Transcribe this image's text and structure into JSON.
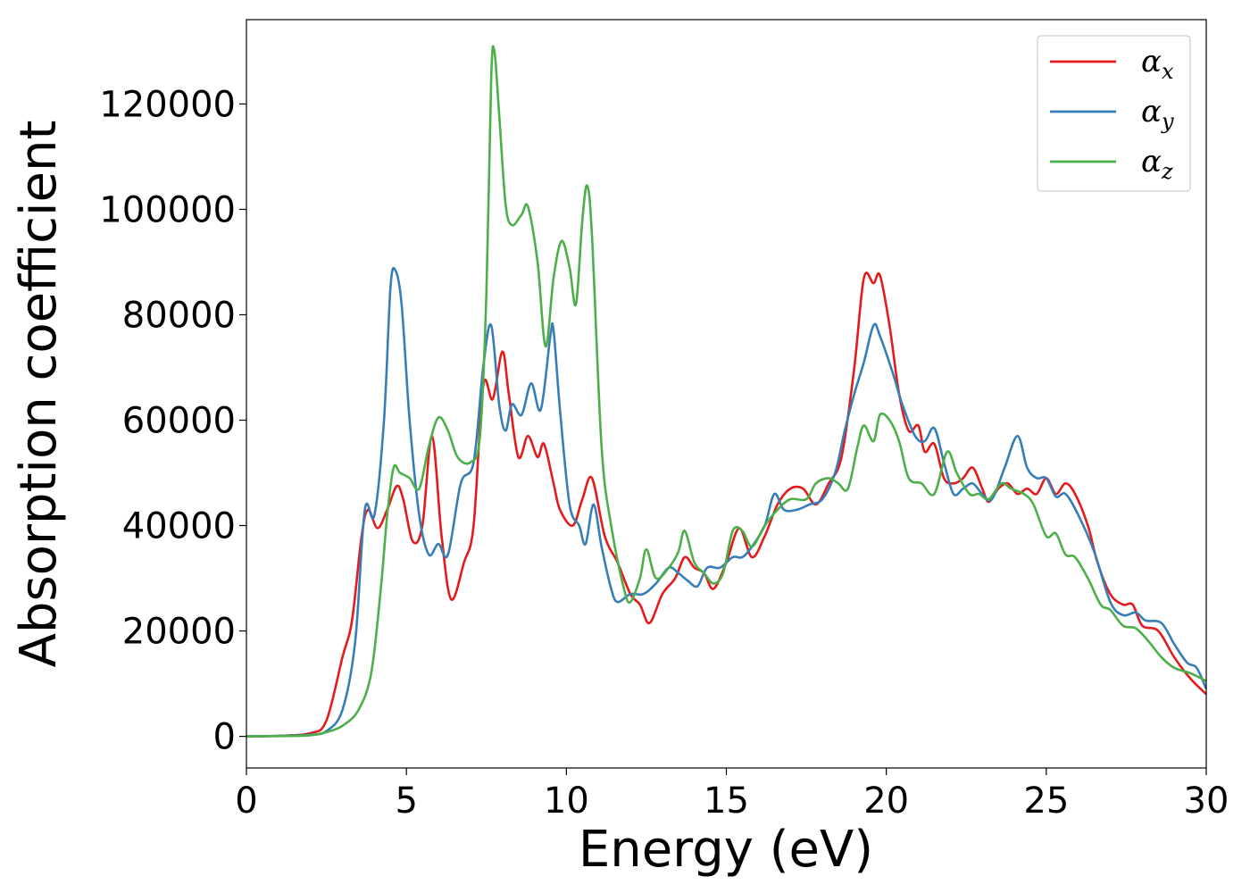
{
  "chart_data": {
    "type": "line",
    "xlabel": "Energy (eV)",
    "ylabel": "Absorption coefficient",
    "xlim": [
      0,
      30
    ],
    "ylim": [
      -6000,
      136000
    ],
    "x_ticks": [
      "0",
      "5",
      "10",
      "15",
      "20",
      "25",
      "30"
    ],
    "y_ticks": [
      "0",
      "20000",
      "40000",
      "60000",
      "80000",
      "100000",
      "120000"
    ],
    "grid": false,
    "legend_position": "top-right",
    "series": [
      {
        "name": "αx",
        "legend_base": "α",
        "legend_sub": "x",
        "color": "#e41a1c",
        "points": [
          [
            0,
            0
          ],
          [
            1,
            100
          ],
          [
            2,
            600
          ],
          [
            2.5,
            3000
          ],
          [
            3,
            15000
          ],
          [
            3.3,
            22000
          ],
          [
            3.6,
            38000
          ],
          [
            3.8,
            43000
          ],
          [
            4.1,
            39500
          ],
          [
            4.4,
            43000
          ],
          [
            4.7,
            47500
          ],
          [
            4.9,
            45000
          ],
          [
            5.2,
            37000
          ],
          [
            5.5,
            40000
          ],
          [
            5.8,
            57000
          ],
          [
            6.1,
            38000
          ],
          [
            6.4,
            26000
          ],
          [
            6.8,
            33000
          ],
          [
            7.1,
            40000
          ],
          [
            7.4,
            66500
          ],
          [
            7.7,
            64000
          ],
          [
            8,
            73000
          ],
          [
            8.2,
            65000
          ],
          [
            8.5,
            53000
          ],
          [
            8.8,
            57000
          ],
          [
            9.1,
            53000
          ],
          [
            9.3,
            55500
          ],
          [
            9.6,
            48000
          ],
          [
            9.8,
            43000
          ],
          [
            10.2,
            40000
          ],
          [
            10.5,
            45000
          ],
          [
            10.8,
            49000
          ],
          [
            11.2,
            38000
          ],
          [
            11.6,
            33000
          ],
          [
            12,
            27000
          ],
          [
            12.3,
            25000
          ],
          [
            12.6,
            21500
          ],
          [
            13,
            27000
          ],
          [
            13.4,
            30000
          ],
          [
            13.7,
            34000
          ],
          [
            14,
            32000
          ],
          [
            14.3,
            31000
          ],
          [
            14.6,
            28000
          ],
          [
            15,
            33000
          ],
          [
            15.4,
            39500
          ],
          [
            15.8,
            34000
          ],
          [
            16.2,
            38000
          ],
          [
            16.6,
            44000
          ],
          [
            17,
            47000
          ],
          [
            17.4,
            47000
          ],
          [
            17.8,
            44000
          ],
          [
            18.2,
            48000
          ],
          [
            18.6,
            53000
          ],
          [
            19,
            70000
          ],
          [
            19.3,
            87000
          ],
          [
            19.6,
            86000
          ],
          [
            19.8,
            87500
          ],
          [
            20.1,
            78000
          ],
          [
            20.4,
            65000
          ],
          [
            20.7,
            58000
          ],
          [
            21,
            59000
          ],
          [
            21.2,
            54000
          ],
          [
            21.5,
            55500
          ],
          [
            21.8,
            49000
          ],
          [
            22.1,
            48000
          ],
          [
            22.4,
            49000
          ],
          [
            22.7,
            51000
          ],
          [
            23,
            47000
          ],
          [
            23.2,
            44500
          ],
          [
            23.5,
            47000
          ],
          [
            23.8,
            48000
          ],
          [
            24.1,
            46000
          ],
          [
            24.4,
            47000
          ],
          [
            24.7,
            46000
          ],
          [
            25,
            49000
          ],
          [
            25.3,
            46000
          ],
          [
            25.6,
            48000
          ],
          [
            25.9,
            46000
          ],
          [
            26.3,
            40000
          ],
          [
            26.6,
            33000
          ],
          [
            27,
            27000
          ],
          [
            27.4,
            25000
          ],
          [
            27.7,
            25000
          ],
          [
            28,
            21000
          ],
          [
            28.5,
            20000
          ],
          [
            29,
            15000
          ],
          [
            29.5,
            11000
          ],
          [
            30,
            8000
          ]
        ]
      },
      {
        "name": "αy",
        "legend_base": "α",
        "legend_sub": "y",
        "color": "#377eb8",
        "points": [
          [
            0,
            0
          ],
          [
            1,
            100
          ],
          [
            2,
            300
          ],
          [
            2.5,
            1000
          ],
          [
            3,
            5000
          ],
          [
            3.4,
            18000
          ],
          [
            3.7,
            43000
          ],
          [
            4,
            42000
          ],
          [
            4.3,
            60000
          ],
          [
            4.5,
            85000
          ],
          [
            4.65,
            88500
          ],
          [
            4.85,
            82000
          ],
          [
            5.1,
            60000
          ],
          [
            5.4,
            42000
          ],
          [
            5.7,
            34500
          ],
          [
            6,
            36500
          ],
          [
            6.3,
            34500
          ],
          [
            6.7,
            48000
          ],
          [
            7.1,
            52000
          ],
          [
            7.4,
            70000
          ],
          [
            7.65,
            78000
          ],
          [
            7.9,
            63000
          ],
          [
            8.1,
            58000
          ],
          [
            8.3,
            63000
          ],
          [
            8.6,
            61000
          ],
          [
            8.9,
            67000
          ],
          [
            9.2,
            62000
          ],
          [
            9.5,
            76000
          ],
          [
            9.6,
            77000
          ],
          [
            9.8,
            62000
          ],
          [
            10.1,
            44000
          ],
          [
            10.4,
            40000
          ],
          [
            10.6,
            36500
          ],
          [
            10.85,
            44000
          ],
          [
            11.1,
            36000
          ],
          [
            11.4,
            28000
          ],
          [
            11.6,
            25500
          ],
          [
            12,
            27000
          ],
          [
            12.4,
            27000
          ],
          [
            12.8,
            29000
          ],
          [
            13.2,
            32000
          ],
          [
            13.5,
            31000
          ],
          [
            13.8,
            29500
          ],
          [
            14.1,
            28500
          ],
          [
            14.4,
            32000
          ],
          [
            14.8,
            32000
          ],
          [
            15.2,
            34000
          ],
          [
            15.5,
            34000
          ],
          [
            15.8,
            36000
          ],
          [
            16.2,
            40000
          ],
          [
            16.5,
            46000
          ],
          [
            16.8,
            43000
          ],
          [
            17.2,
            43000
          ],
          [
            17.6,
            44000
          ],
          [
            18,
            45000
          ],
          [
            18.4,
            50000
          ],
          [
            18.7,
            58000
          ],
          [
            19,
            65000
          ],
          [
            19.3,
            71000
          ],
          [
            19.6,
            78000
          ],
          [
            19.8,
            76000
          ],
          [
            20.2,
            69000
          ],
          [
            20.5,
            63000
          ],
          [
            20.9,
            57000
          ],
          [
            21.2,
            56000
          ],
          [
            21.5,
            58500
          ],
          [
            21.8,
            52000
          ],
          [
            22.1,
            46000
          ],
          [
            22.4,
            47000
          ],
          [
            22.7,
            48000
          ],
          [
            23,
            46000
          ],
          [
            23.3,
            45000
          ],
          [
            23.7,
            51000
          ],
          [
            24.1,
            57000
          ],
          [
            24.4,
            51000
          ],
          [
            24.7,
            49000
          ],
          [
            25,
            49000
          ],
          [
            25.3,
            45500
          ],
          [
            25.6,
            46000
          ],
          [
            26,
            42000
          ],
          [
            26.5,
            35000
          ],
          [
            27,
            25500
          ],
          [
            27.4,
            23000
          ],
          [
            27.8,
            23500
          ],
          [
            28.1,
            22000
          ],
          [
            28.6,
            21500
          ],
          [
            29,
            17500
          ],
          [
            29.4,
            14000
          ],
          [
            29.7,
            13000
          ],
          [
            30,
            9000
          ]
        ]
      },
      {
        "name": "αz",
        "legend_base": "α",
        "legend_sub": "z",
        "color": "#4daf4a",
        "points": [
          [
            0,
            0
          ],
          [
            1,
            50
          ],
          [
            2,
            200
          ],
          [
            2.5,
            800
          ],
          [
            3,
            2000
          ],
          [
            3.5,
            5000
          ],
          [
            3.9,
            12000
          ],
          [
            4.2,
            28000
          ],
          [
            4.4,
            42000
          ],
          [
            4.6,
            51000
          ],
          [
            4.8,
            50000
          ],
          [
            5.1,
            49000
          ],
          [
            5.4,
            47000
          ],
          [
            5.7,
            55000
          ],
          [
            6,
            60500
          ],
          [
            6.3,
            58000
          ],
          [
            6.6,
            53000
          ],
          [
            7,
            52000
          ],
          [
            7.3,
            57000
          ],
          [
            7.5,
            84000
          ],
          [
            7.65,
            125000
          ],
          [
            7.75,
            130000
          ],
          [
            7.9,
            118000
          ],
          [
            8.1,
            101000
          ],
          [
            8.3,
            97000
          ],
          [
            8.6,
            99000
          ],
          [
            8.8,
            100500
          ],
          [
            9.1,
            90000
          ],
          [
            9.35,
            74000
          ],
          [
            9.6,
            87000
          ],
          [
            9.85,
            94000
          ],
          [
            10.1,
            89000
          ],
          [
            10.3,
            82000
          ],
          [
            10.5,
            98000
          ],
          [
            10.65,
            104500
          ],
          [
            10.8,
            95000
          ],
          [
            11.1,
            55000
          ],
          [
            11.4,
            40000
          ],
          [
            11.8,
            28000
          ],
          [
            12,
            25500
          ],
          [
            12.3,
            30000
          ],
          [
            12.5,
            35500
          ],
          [
            12.8,
            30000
          ],
          [
            13.2,
            32000
          ],
          [
            13.5,
            35000
          ],
          [
            13.7,
            39000
          ],
          [
            14,
            33000
          ],
          [
            14.3,
            31000
          ],
          [
            14.6,
            29000
          ],
          [
            14.9,
            31000
          ],
          [
            15.2,
            39000
          ],
          [
            15.5,
            39000
          ],
          [
            15.8,
            36000
          ],
          [
            16.2,
            40000
          ],
          [
            16.6,
            43000
          ],
          [
            17,
            45000
          ],
          [
            17.5,
            45000
          ],
          [
            17.8,
            48000
          ],
          [
            18.2,
            49000
          ],
          [
            18.5,
            48000
          ],
          [
            18.8,
            47000
          ],
          [
            19.1,
            55000
          ],
          [
            19.3,
            59000
          ],
          [
            19.6,
            56000
          ],
          [
            19.8,
            61000
          ],
          [
            20.1,
            60000
          ],
          [
            20.4,
            56000
          ],
          [
            20.7,
            49000
          ],
          [
            21.1,
            48000
          ],
          [
            21.5,
            46000
          ],
          [
            21.9,
            54000
          ],
          [
            22.2,
            50000
          ],
          [
            22.6,
            46000
          ],
          [
            22.9,
            46000
          ],
          [
            23.2,
            45000
          ],
          [
            23.6,
            48000
          ],
          [
            23.9,
            47000
          ],
          [
            24.3,
            46000
          ],
          [
            24.6,
            44000
          ],
          [
            25,
            38000
          ],
          [
            25.3,
            38500
          ],
          [
            25.6,
            34500
          ],
          [
            25.9,
            34000
          ],
          [
            26.3,
            30000
          ],
          [
            26.7,
            25000
          ],
          [
            27,
            24000
          ],
          [
            27.4,
            21000
          ],
          [
            27.8,
            20500
          ],
          [
            28.2,
            18000
          ],
          [
            28.6,
            15000
          ],
          [
            29,
            13000
          ],
          [
            29.5,
            12000
          ],
          [
            30,
            10500
          ]
        ]
      }
    ]
  }
}
